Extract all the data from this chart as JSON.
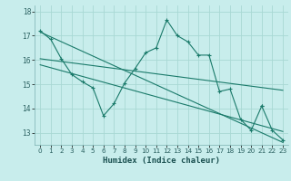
{
  "xlabel": "Humidex (Indice chaleur)",
  "bg_color": "#c8edec",
  "grid_color": "#a8d8d4",
  "line_color": "#1a7a6a",
  "xlim": [
    -0.5,
    23.5
  ],
  "ylim": [
    12.5,
    18.25
  ],
  "yticks": [
    13,
    14,
    15,
    16,
    17,
    18
  ],
  "xticks": [
    0,
    1,
    2,
    3,
    4,
    5,
    6,
    7,
    8,
    9,
    10,
    11,
    12,
    13,
    14,
    15,
    16,
    17,
    18,
    19,
    20,
    21,
    22,
    23
  ],
  "line1_x": [
    0,
    1,
    2,
    3,
    4,
    5,
    6,
    7,
    8,
    9,
    10,
    11,
    12,
    13,
    14,
    15,
    16,
    17,
    18,
    19,
    20,
    21
  ],
  "line1_y": [
    17.2,
    16.85,
    16.05,
    15.4,
    15.1,
    14.85,
    13.7,
    14.2,
    15.05,
    15.65,
    16.3,
    16.5,
    17.65,
    17.0,
    16.75,
    16.2,
    16.2,
    14.7,
    14.8,
    13.55,
    13.1,
    14.1
  ],
  "line2_x": [
    0,
    23
  ],
  "line2_y": [
    17.15,
    12.6
  ],
  "line3_x": [
    0,
    23
  ],
  "line3_y": [
    16.05,
    14.75
  ],
  "line4_x": [
    0,
    23
  ],
  "line4_y": [
    15.8,
    13.05
  ],
  "line5_x": [
    21,
    22,
    23
  ],
  "line5_y": [
    14.1,
    13.1,
    12.7
  ]
}
